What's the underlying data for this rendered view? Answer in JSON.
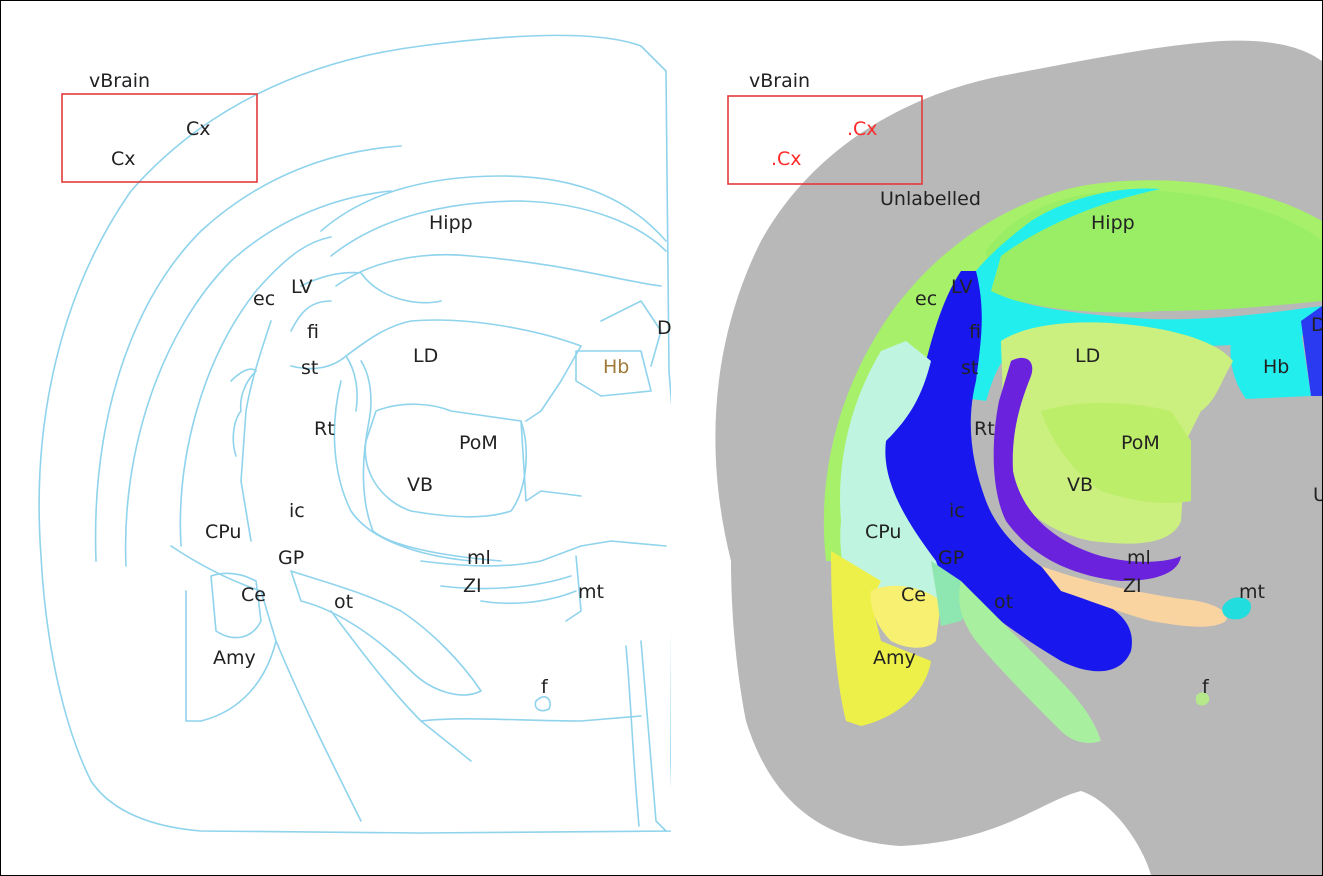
{
  "left_panel": {
    "title": "vBrain",
    "labels": {
      "cx_a": "Cx",
      "cx_b": "Cx",
      "hipp": "Hipp",
      "ec": "ec",
      "lv": "LV",
      "fi": "fi",
      "st": "st",
      "ld": "LD",
      "d": "D",
      "hb": "Hb",
      "rt": "Rt",
      "pom": "PoM",
      "vb": "VB",
      "ic": "ic",
      "cpu": "CPu",
      "gp": "GP",
      "ml": "ml",
      "zi": "ZI",
      "mt": "mt",
      "ce": "Ce",
      "ot": "ot",
      "amy": "Amy",
      "f": "f"
    },
    "colors": {
      "outline": "#8fd3ec",
      "highlight_box": "#e23b3b",
      "hb_label": "#a07a3a"
    }
  },
  "right_panel": {
    "title": "vBrain",
    "labels": {
      "cx_a": ".Cx",
      "cx_b": ".Cx",
      "unlabelled": "Unlabelled",
      "hipp": "Hipp",
      "ec": "ec",
      "lv": "LV",
      "fi": "fi",
      "st": "st",
      "ld": "LD",
      "hb": "Hb",
      "rt": "Rt",
      "pom": "PoM",
      "vb": "VB",
      "ic": "ic",
      "cpu": "CPu",
      "gp": "GP",
      "ml": "ml",
      "zi": "ZI",
      "mt": "mt",
      "ce": "Ce",
      "ot": "ot",
      "amy": "Amy",
      "f": "f",
      "edge_d": "D",
      "edge_u": "U"
    },
    "colors": {
      "cortex": "#b8b8b8",
      "hippocampus": "#99ee66",
      "lateral_ventricle": "#22eeee",
      "internal_capsule": "#1818ee",
      "thalamus": "#ccf080",
      "reticular": "#6a22dd",
      "striatum": "#bff5e0",
      "amygdala": "#eef04a",
      "central_amygdala": "#f8f070",
      "zona_incerta": "#f9d4a0",
      "optic_tract": "#a8f0a0",
      "highlight_box": "#e23b3b",
      "cx_label": "#ff2a2a"
    }
  }
}
